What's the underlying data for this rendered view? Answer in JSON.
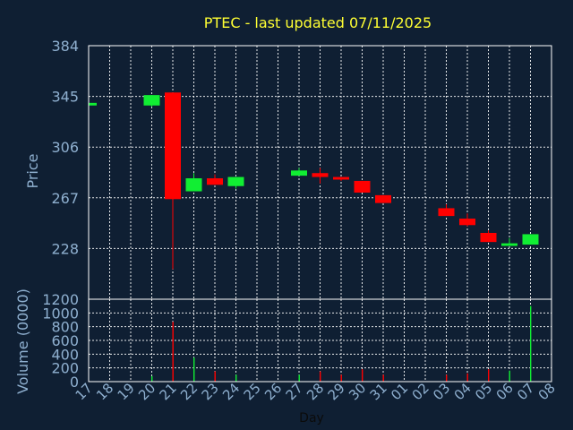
{
  "title": "PTEC - last updated 07/11/2025",
  "colors": {
    "background": "#0f1f33",
    "title": "#ffff33",
    "axis_text": "#8fb0d0",
    "grid": "#ffffff",
    "frame": "#ffffff",
    "up": "#11ee33",
    "down": "#ff0000"
  },
  "chart_data": [
    {
      "type": "candlestick",
      "ylabel": "Price",
      "ylim": [
        189,
        384
      ],
      "yticks": [
        228,
        267,
        306,
        345,
        384
      ],
      "x_tick_labels": [
        "17",
        "18",
        "19",
        "20",
        "21",
        "22",
        "23",
        "24",
        "25",
        "26",
        "27",
        "28",
        "29",
        "30",
        "31",
        "01",
        "02",
        "03",
        "04",
        "05",
        "06",
        "07",
        "08"
      ],
      "grid": true,
      "candles": [
        {
          "x": "17",
          "open": 338,
          "close": 340,
          "high": 340,
          "low": 338
        },
        {
          "x": "20",
          "open": 338,
          "close": 346,
          "high": 346,
          "low": 337
        },
        {
          "x": "21",
          "open": 348,
          "close": 266,
          "high": 348,
          "low": 212
        },
        {
          "x": "22",
          "open": 272,
          "close": 282,
          "high": 286,
          "low": 272
        },
        {
          "x": "23",
          "open": 282,
          "close": 277,
          "high": 285,
          "low": 277
        },
        {
          "x": "24",
          "open": 276,
          "close": 283,
          "high": 283,
          "low": 274
        },
        {
          "x": "27",
          "open": 284,
          "close": 288,
          "high": 290,
          "low": 284
        },
        {
          "x": "28",
          "open": 286,
          "close": 283,
          "high": 290,
          "low": 278
        },
        {
          "x": "29",
          "open": 283,
          "close": 281,
          "high": 283,
          "low": 280
        },
        {
          "x": "30",
          "open": 280,
          "close": 271,
          "high": 280,
          "low": 271
        },
        {
          "x": "31",
          "open": 269,
          "close": 263,
          "high": 269,
          "low": 263
        },
        {
          "x": "03",
          "open": 259,
          "close": 253,
          "high": 262,
          "low": 253
        },
        {
          "x": "04",
          "open": 251,
          "close": 246,
          "high": 255,
          "low": 245
        },
        {
          "x": "05",
          "open": 240,
          "close": 233,
          "high": 242,
          "low": 233
        },
        {
          "x": "06",
          "open": 230,
          "close": 232,
          "high": 236,
          "low": 230
        },
        {
          "x": "07",
          "open": 231,
          "close": 239,
          "high": 239,
          "low": 231
        }
      ]
    },
    {
      "type": "bar",
      "ylabel": "Volume (0000)",
      "xlabel": "Day",
      "ylim": [
        0,
        1200
      ],
      "yticks": [
        0,
        200,
        400,
        600,
        800,
        1000,
        1200
      ],
      "x_tick_labels": [
        "17",
        "18",
        "19",
        "20",
        "21",
        "22",
        "23",
        "24",
        "25",
        "26",
        "27",
        "28",
        "29",
        "30",
        "31",
        "01",
        "02",
        "03",
        "04",
        "05",
        "06",
        "07",
        "08"
      ],
      "grid": true,
      "bars": [
        {
          "x": "17",
          "value": 0,
          "direction": "up"
        },
        {
          "x": "20",
          "value": 80,
          "direction": "up"
        },
        {
          "x": "21",
          "value": 870,
          "direction": "down"
        },
        {
          "x": "22",
          "value": 350,
          "direction": "up"
        },
        {
          "x": "23",
          "value": 150,
          "direction": "down"
        },
        {
          "x": "24",
          "value": 100,
          "direction": "up"
        },
        {
          "x": "27",
          "value": 100,
          "direction": "up"
        },
        {
          "x": "28",
          "value": 150,
          "direction": "down"
        },
        {
          "x": "29",
          "value": 100,
          "direction": "down"
        },
        {
          "x": "30",
          "value": 180,
          "direction": "down"
        },
        {
          "x": "31",
          "value": 100,
          "direction": "down"
        },
        {
          "x": "03",
          "value": 100,
          "direction": "down"
        },
        {
          "x": "04",
          "value": 120,
          "direction": "down"
        },
        {
          "x": "05",
          "value": 180,
          "direction": "down"
        },
        {
          "x": "06",
          "value": 160,
          "direction": "up"
        },
        {
          "x": "07",
          "value": 1100,
          "direction": "up"
        }
      ]
    }
  ]
}
